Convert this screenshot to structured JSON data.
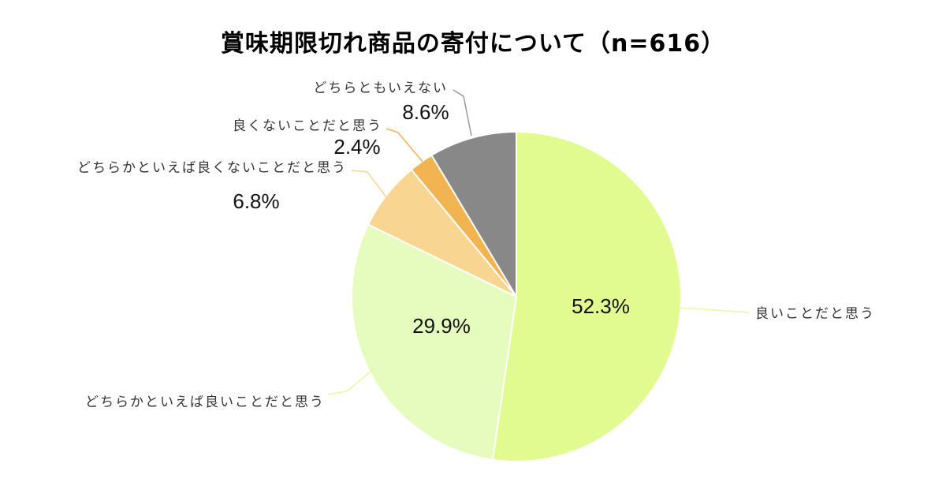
{
  "title": "賞味期限切れ商品の寄付について（n=616）",
  "chart_data": {
    "type": "pie",
    "title": "賞味期限切れ商品の寄付について（n=616）",
    "n": 616,
    "start_angle": "12 o'clock",
    "direction": "clockwise",
    "slices": [
      {
        "label": "良いことだと思う",
        "value": 52.3,
        "display": "52.3%",
        "color": "#e2fb90"
      },
      {
        "label": "どちらかといえば良いことだと思う",
        "value": 29.9,
        "display": "29.9%",
        "color": "#e6fbbe"
      },
      {
        "label": "どちらかといえば良くないことだと思う",
        "value": 6.8,
        "display": "6.8%",
        "color": "#f8d590"
      },
      {
        "label": "良くないことだと思う",
        "value": 2.4,
        "display": "2.4%",
        "color": "#f2b451"
      },
      {
        "label": "どちらともいえない",
        "value": 8.6,
        "display": "8.6%",
        "color": "#888888"
      }
    ],
    "leader_colors": [
      "#ecf6a8",
      "#ecf6a8",
      "#f8d590",
      "#f2b451",
      "#999999"
    ]
  }
}
